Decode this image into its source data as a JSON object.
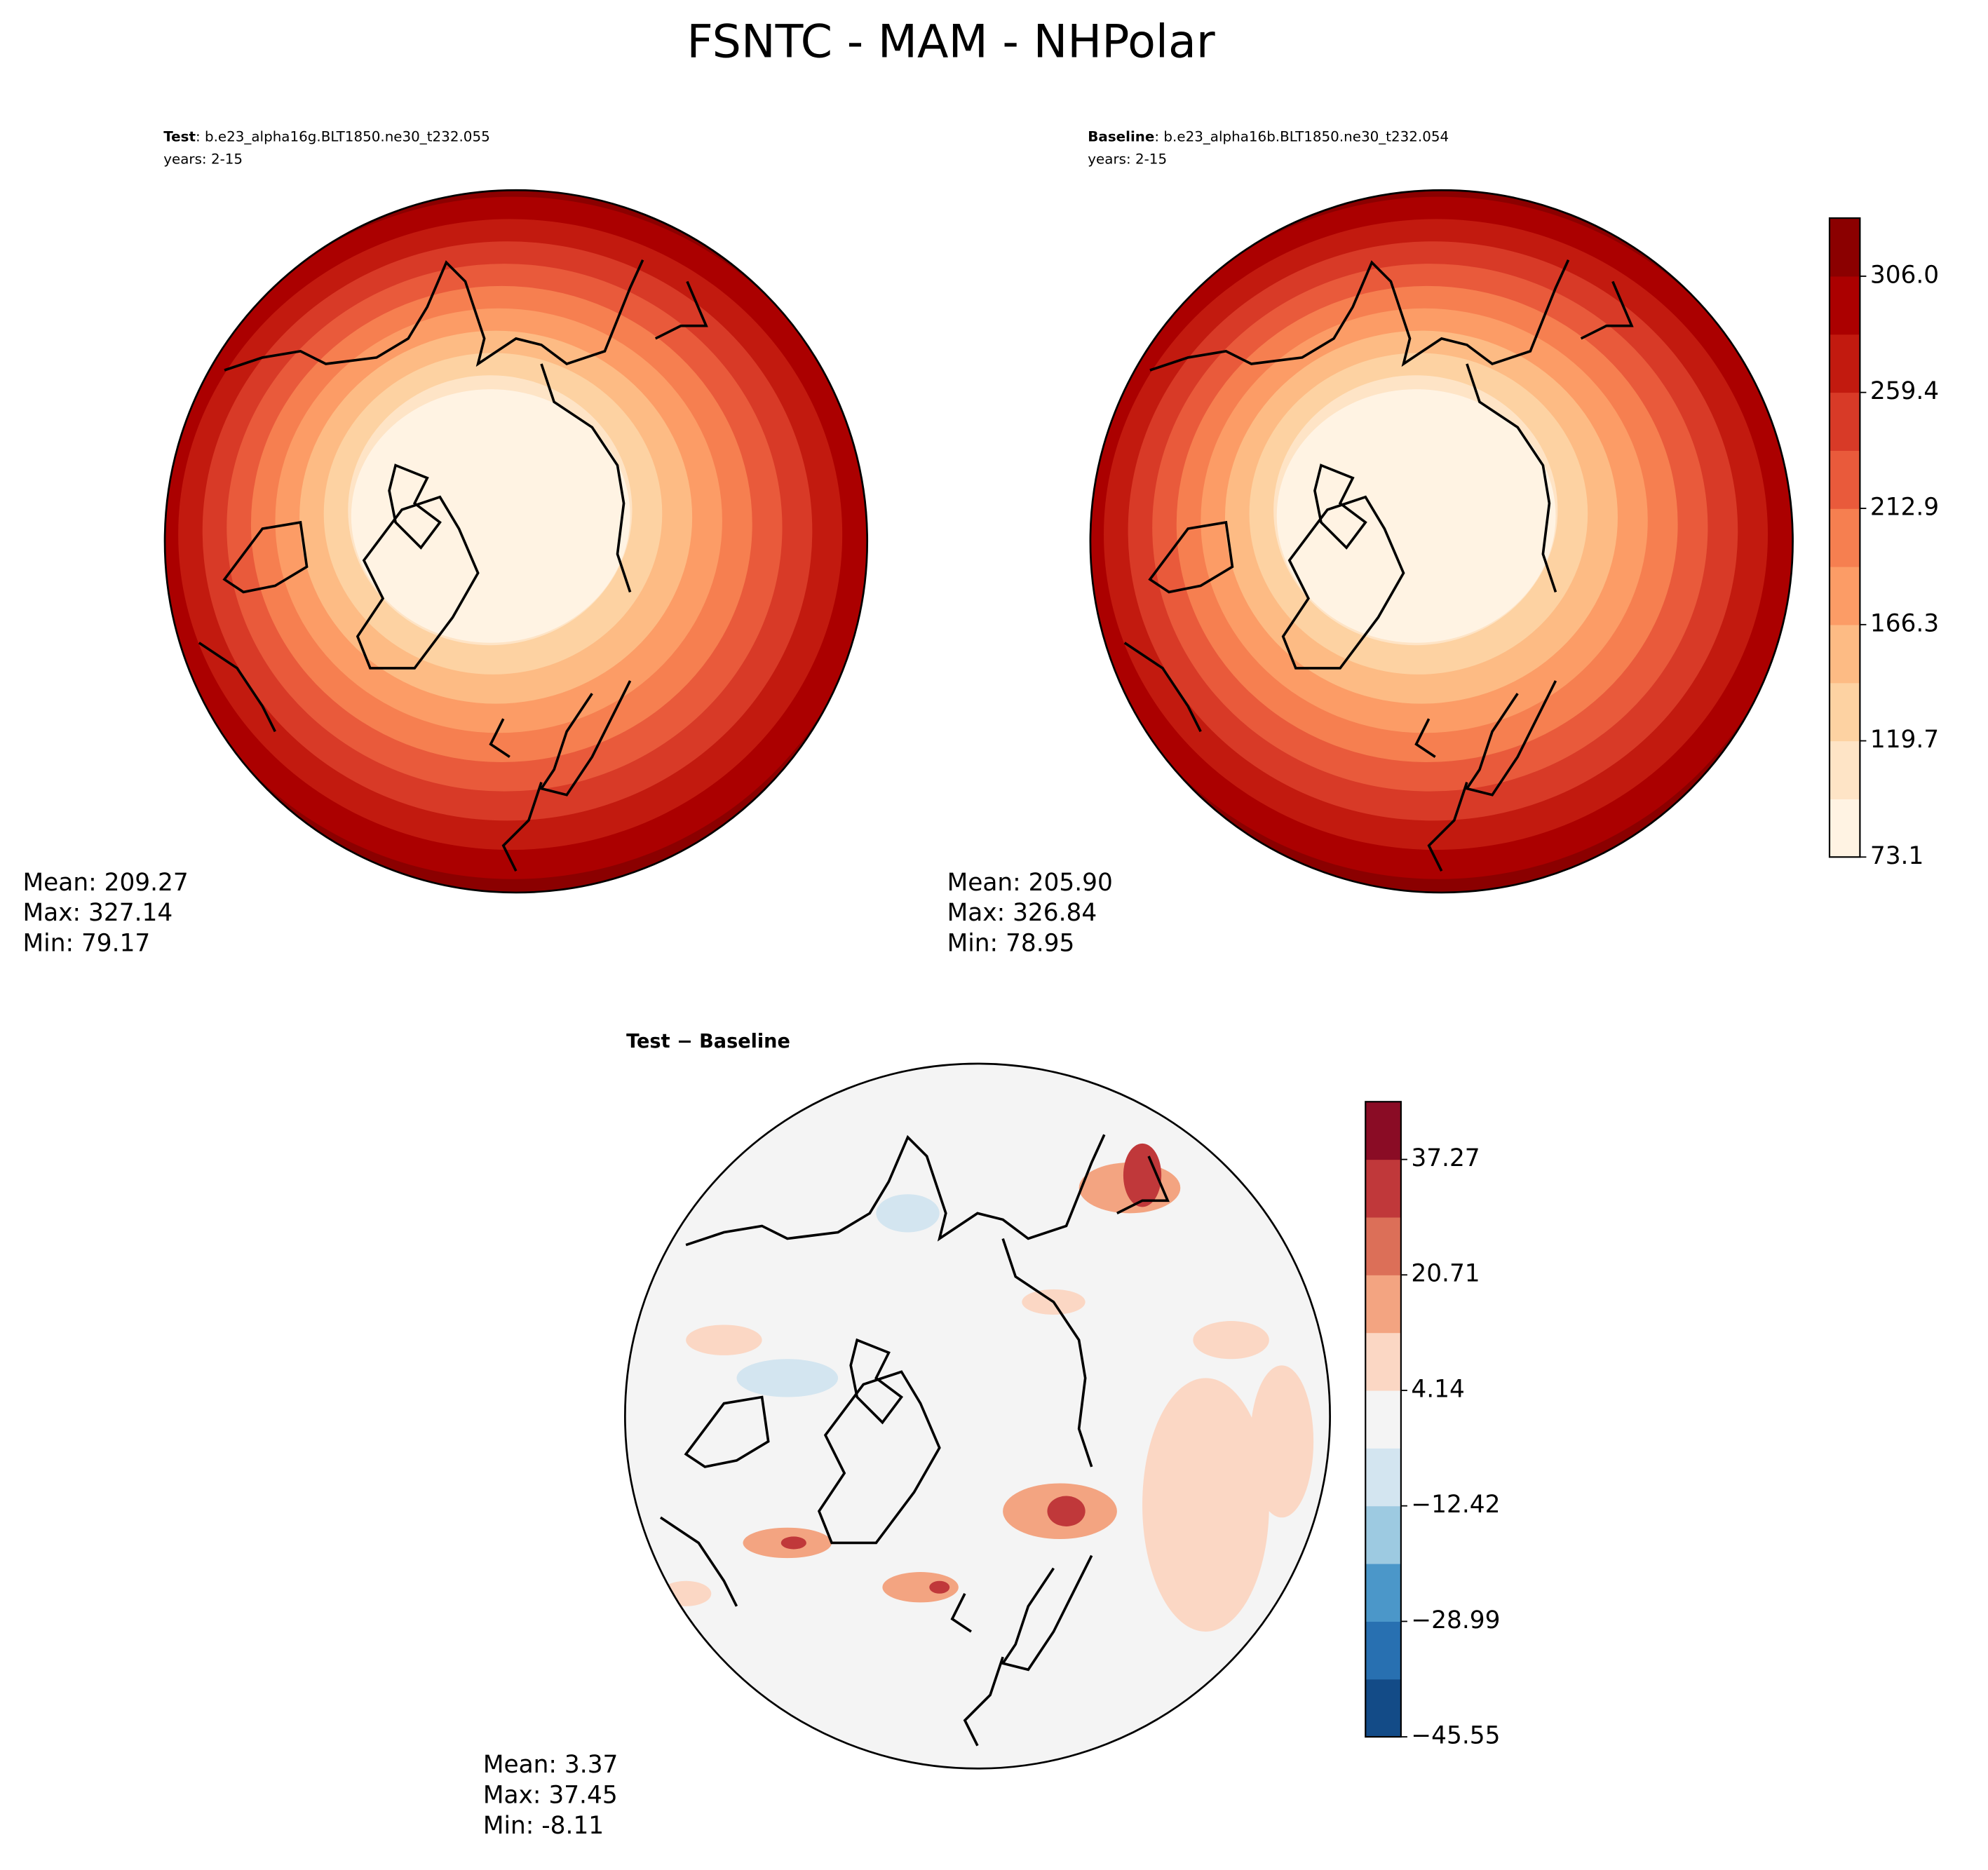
{
  "title": "FSNTC - MAM - NHPolar",
  "chart_data": [
    {
      "type": "contour",
      "title": "Test",
      "case": ": b.e23_alpha16g.BLT1850.ne30_t232.055",
      "years": "years: 2-15",
      "stats": [
        "Mean: 209.27",
        "Max: 327.14",
        "Min: 79.17"
      ],
      "colors": [
        "#fff3e3",
        "#fee4c6",
        "#fdd2a2",
        "#fdbb84",
        "#fc9c66",
        "#f67f50",
        "#e95a3b",
        "#d83a27",
        "#c21a0f",
        "#ab0000",
        "#8b0000"
      ]
    },
    {
      "type": "contour",
      "title": "Baseline",
      "case": ": b.e23_alpha16b.BLT1850.ne30_t232.054",
      "years": "years: 2-15",
      "stats": [
        "Mean: 205.90",
        "Max: 326.84",
        "Min: 78.95"
      ],
      "colors": [
        "#fff3e3",
        "#fee4c6",
        "#fdd2a2",
        "#fdbb84",
        "#fc9c66",
        "#f67f50",
        "#e95a3b",
        "#d83a27",
        "#c21a0f",
        "#ab0000",
        "#8b0000"
      ],
      "ylim": [
        73.1,
        329.3
      ],
      "yticks": [
        73.1,
        119.7,
        166.3,
        212.9,
        259.4,
        {
          "value": 306,
          "label": "306.0"
        }
      ]
    },
    {
      "type": "contour",
      "title": "Test − Baseline",
      "stats": [
        "Mean:  3.37",
        "Max: 37.45",
        "Min: -8.11"
      ],
      "colors": [
        "#134b87",
        "#2870b1",
        "#4b97c9",
        "#9dcae1",
        "#d3e5f0",
        "#f4f4f4",
        "#fbd7c4",
        "#f3a481",
        "#dc6f58",
        "#c0383a",
        "#8a0c25"
      ],
      "ylim": [
        -45.55,
        45.55
      ],
      "yticks": [
        {
          "value": -45.55,
          "label": "−45.55"
        },
        {
          "value": -28.99,
          "label": "−28.99"
        },
        {
          "value": -12.42,
          "label": "−12.42"
        },
        4.14,
        20.71,
        37.27
      ]
    }
  ]
}
